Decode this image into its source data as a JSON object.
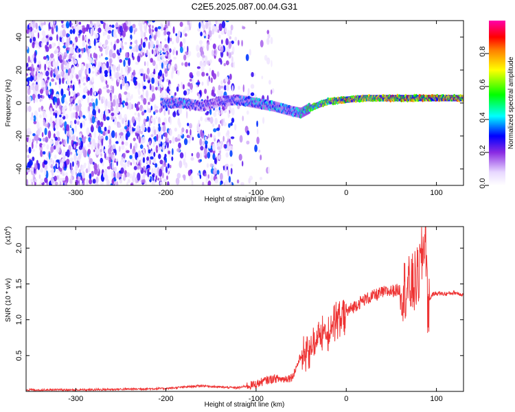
{
  "figure": {
    "title": "C2E5.2025.087.00.04.G31"
  },
  "chart_data": [
    {
      "type": "heatmap",
      "title": "C2E5.2025.087.00.04.G31",
      "xlabel": "Height of straight line (km)",
      "ylabel": "Frequency (Hz)",
      "xlim": [
        -355,
        130
      ],
      "ylim": [
        -50,
        50
      ],
      "xticks": [
        -300,
        -200,
        -100,
        0,
        100
      ],
      "yticks": [
        -40,
        -20,
        0,
        20,
        40
      ],
      "colorbar": {
        "label": "Normalized spectral amplitude",
        "range": [
          0,
          1
        ],
        "ticks": [
          "0.0",
          "0.2",
          "0.4",
          "0.6",
          "0.8"
        ],
        "colormap": [
          "#ffffff",
          "#e8d8ff",
          "#8a2be2",
          "#0000ff",
          "#00ffff",
          "#00ff00",
          "#ffff00",
          "#ff8000",
          "#ff0000",
          "#ff00aa"
        ]
      },
      "ridge": {
        "description_points_x": [
          -200,
          -180,
          -160,
          -140,
          -120,
          -100,
          -80,
          -60,
          -50,
          -40,
          -20,
          0,
          20,
          40,
          60,
          80,
          100,
          130
        ],
        "frequency_hz": [
          0,
          0,
          -2,
          1,
          2,
          0,
          -2,
          -5,
          -6,
          -3,
          1,
          2,
          3,
          3,
          3,
          3,
          3,
          3
        ],
        "amplitude": [
          0.35,
          0.4,
          0.3,
          0.3,
          0.35,
          0.45,
          0.45,
          0.4,
          0.5,
          0.6,
          0.7,
          0.85,
          0.75,
          0.8,
          0.85,
          0.9,
          0.85,
          0.85
        ]
      }
    },
    {
      "type": "line",
      "xlabel": "Height of straight line (km)",
      "ylabel": "SNR (10 * v/v)",
      "yscale_label": "(x10",
      "yscale_exp": "4",
      "xlim": [
        -355,
        130
      ],
      "ylim": [
        0,
        2.3
      ],
      "xticks": [
        -300,
        -200,
        -100,
        0,
        100
      ],
      "yticks": [
        "0.5",
        "1.0",
        "1.5",
        "2.0"
      ],
      "color": "#ee3333",
      "series": [
        {
          "x": [
            -355,
            -300,
            -250,
            -200,
            -170,
            -160,
            -140,
            -120,
            -100,
            -90,
            -80,
            -70,
            -60,
            -55,
            -50,
            -45,
            -40,
            -30,
            -20,
            -10,
            0,
            10,
            20,
            30,
            40,
            50,
            60,
            70,
            75,
            80,
            85,
            88,
            90,
            95,
            100,
            110,
            120,
            130
          ],
          "y": [
            0.02,
            0.02,
            0.03,
            0.04,
            0.07,
            0.08,
            0.06,
            0.05,
            0.1,
            0.15,
            0.18,
            0.17,
            0.2,
            0.35,
            0.5,
            0.6,
            0.65,
            0.8,
            0.9,
            1.05,
            1.1,
            1.2,
            1.28,
            1.33,
            1.38,
            1.4,
            1.42,
            1.45,
            1.5,
            1.6,
            1.95,
            2.25,
            1.2,
            1.35,
            1.37,
            1.36,
            1.38,
            1.35
          ]
        }
      ]
    }
  ]
}
